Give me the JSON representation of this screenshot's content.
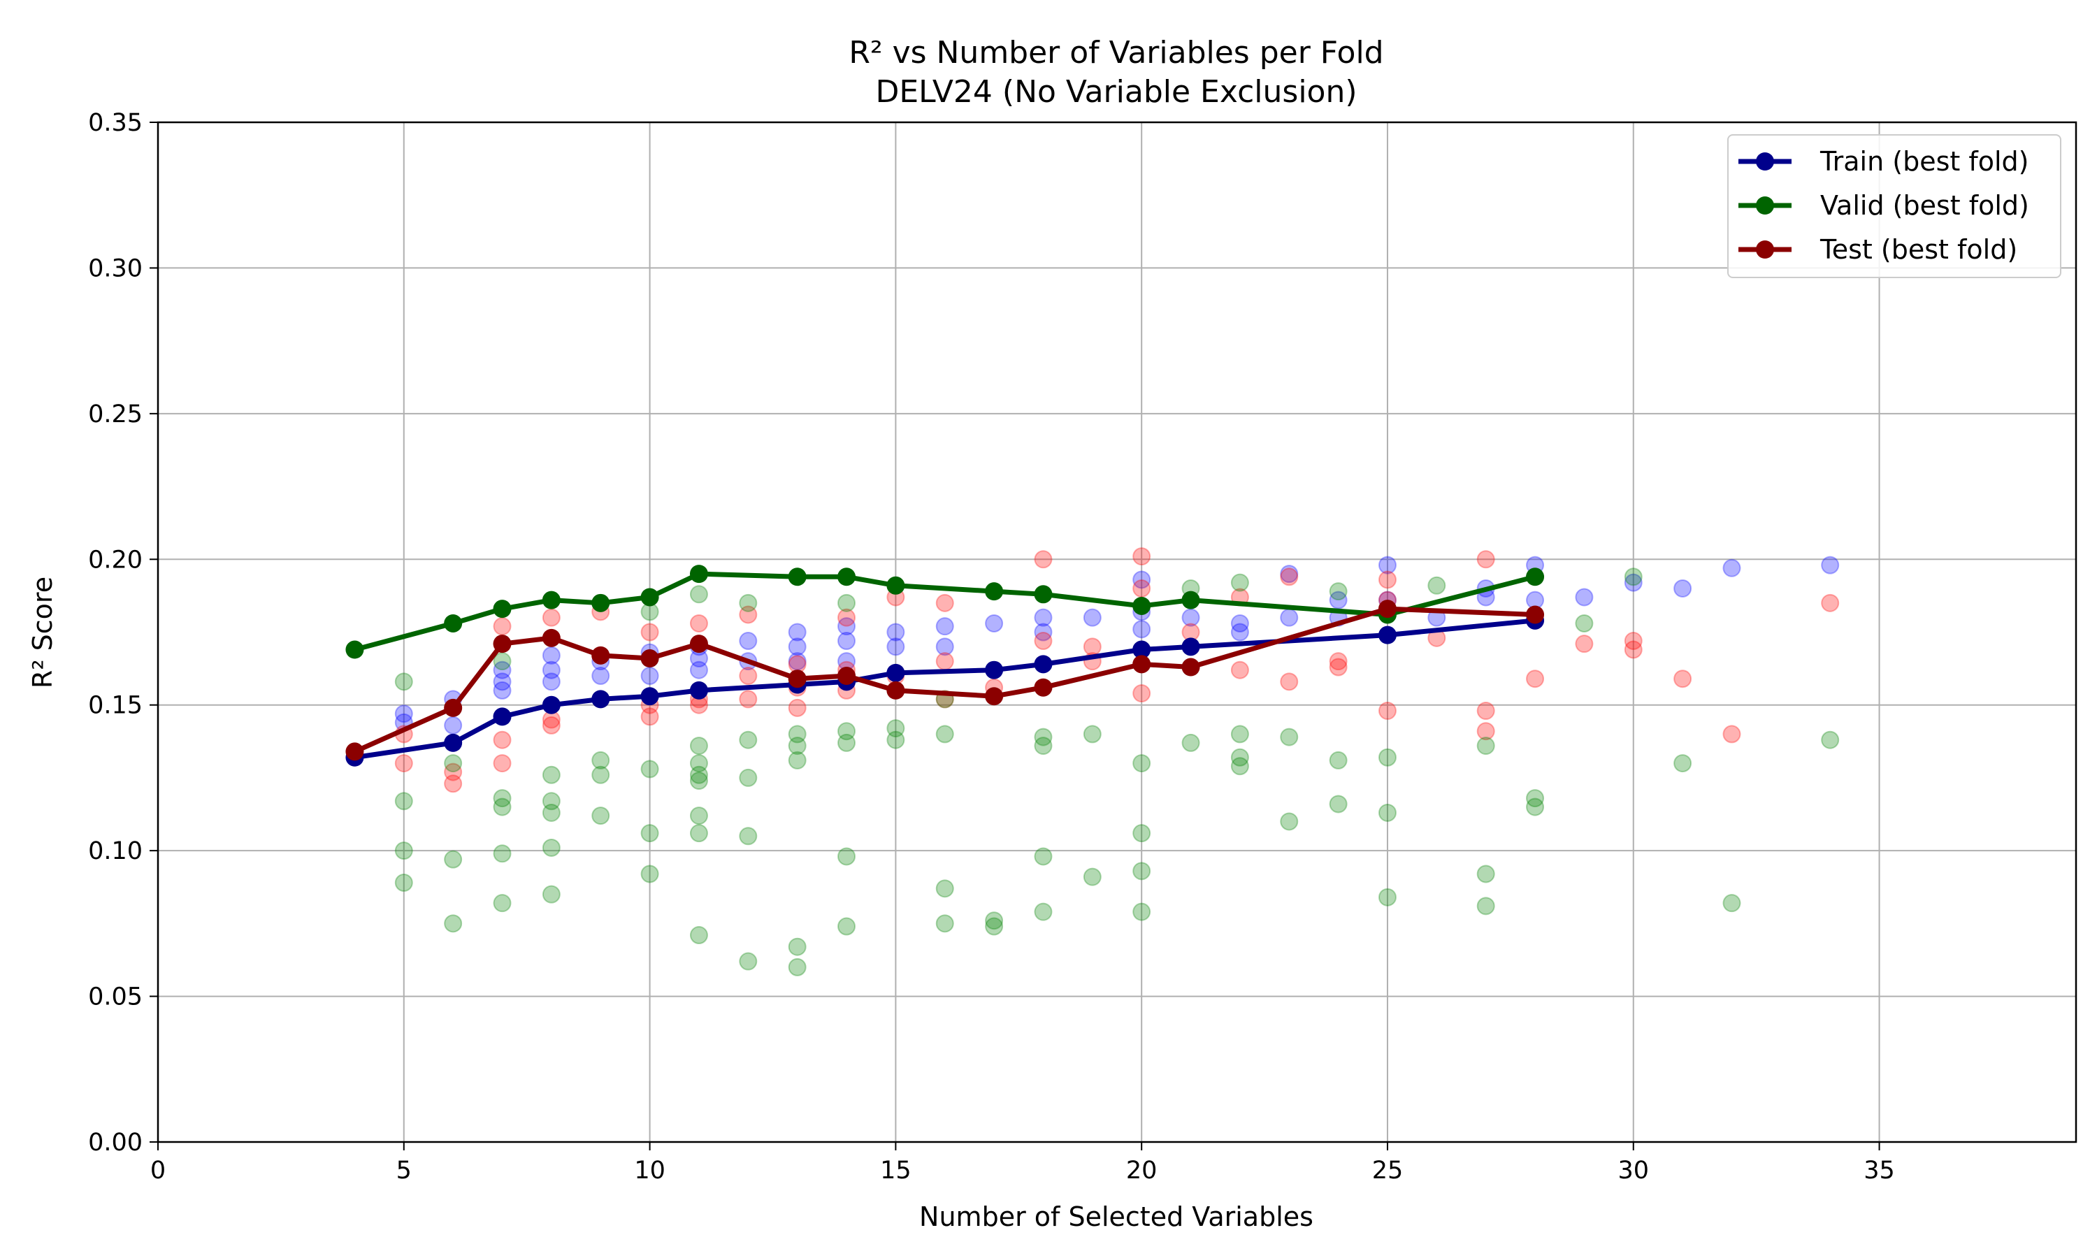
{
  "chart_data": {
    "type": "line",
    "title": "R² vs Number of Variables per Fold",
    "subtitle": "DELV24 (No Variable Exclusion)",
    "xlabel": "Number of Selected Variables",
    "ylabel": "R² Score",
    "xlim": [
      0,
      39
    ],
    "ylim": [
      0,
      0.35
    ],
    "xticks": [
      0,
      5,
      10,
      15,
      20,
      25,
      30,
      35
    ],
    "xtick_labels": [
      "0",
      "5",
      "10",
      "15",
      "20",
      "25",
      "30",
      "35"
    ],
    "yticks": [
      0,
      0.05,
      0.1,
      0.15,
      0.2,
      0.25,
      0.3,
      0.35
    ],
    "ytick_labels": [
      "0.00",
      "0.05",
      "0.10",
      "0.15",
      "0.20",
      "0.25",
      "0.30",
      "0.35"
    ],
    "grid": true,
    "legend_position": "top-right",
    "series": [
      {
        "name": "Train (best fold)",
        "color": "#00008b",
        "x": [
          4,
          6,
          7,
          8,
          9,
          10,
          11,
          13,
          14,
          15,
          17,
          18,
          20,
          21,
          25,
          28
        ],
        "y": [
          0.132,
          0.137,
          0.146,
          0.15,
          0.152,
          0.153,
          0.155,
          0.157,
          0.158,
          0.161,
          0.162,
          0.164,
          0.169,
          0.17,
          0.174,
          0.179
        ]
      },
      {
        "name": "Valid (best fold)",
        "color": "#006400",
        "x": [
          4,
          6,
          7,
          8,
          9,
          10,
          11,
          13,
          14,
          15,
          17,
          18,
          20,
          21,
          25,
          28
        ],
        "y": [
          0.169,
          0.178,
          0.183,
          0.186,
          0.185,
          0.187,
          0.195,
          0.194,
          0.194,
          0.191,
          0.189,
          0.188,
          0.184,
          0.186,
          0.181,
          0.194
        ]
      },
      {
        "name": "Test (best fold)",
        "color": "#8b0000",
        "x": [
          4,
          6,
          7,
          8,
          9,
          10,
          11,
          13,
          14,
          15,
          17,
          18,
          20,
          21,
          25,
          28
        ],
        "y": [
          0.134,
          0.149,
          0.171,
          0.173,
          0.167,
          0.166,
          0.171,
          0.159,
          0.16,
          0.155,
          0.153,
          0.156,
          0.164,
          0.163,
          0.183,
          0.181
        ]
      }
    ],
    "scatter_series": [
      {
        "color": "#0000ff",
        "points": [
          [
            5,
            0.147
          ],
          [
            5,
            0.144
          ],
          [
            6,
            0.152
          ],
          [
            6,
            0.143
          ],
          [
            7,
            0.155
          ],
          [
            7,
            0.158
          ],
          [
            7,
            0.162
          ],
          [
            8,
            0.158
          ],
          [
            8,
            0.162
          ],
          [
            8,
            0.167
          ],
          [
            9,
            0.16
          ],
          [
            9,
            0.165
          ],
          [
            10,
            0.16
          ],
          [
            10,
            0.166
          ],
          [
            10,
            0.168
          ],
          [
            11,
            0.162
          ],
          [
            11,
            0.166
          ],
          [
            11,
            0.17
          ],
          [
            12,
            0.165
          ],
          [
            12,
            0.172
          ],
          [
            13,
            0.165
          ],
          [
            13,
            0.17
          ],
          [
            13,
            0.175
          ],
          [
            14,
            0.165
          ],
          [
            14,
            0.172
          ],
          [
            14,
            0.177
          ],
          [
            15,
            0.17
          ],
          [
            15,
            0.175
          ],
          [
            16,
            0.17
          ],
          [
            16,
            0.177
          ],
          [
            17,
            0.178
          ],
          [
            18,
            0.175
          ],
          [
            18,
            0.18
          ],
          [
            19,
            0.18
          ],
          [
            20,
            0.176
          ],
          [
            20,
            0.182
          ],
          [
            20,
            0.193
          ],
          [
            21,
            0.18
          ],
          [
            22,
            0.178
          ],
          [
            22,
            0.175
          ],
          [
            23,
            0.18
          ],
          [
            23,
            0.195
          ],
          [
            24,
            0.18
          ],
          [
            24,
            0.186
          ],
          [
            25,
            0.198
          ],
          [
            25,
            0.186
          ],
          [
            26,
            0.18
          ],
          [
            27,
            0.187
          ],
          [
            27,
            0.19
          ],
          [
            28,
            0.186
          ],
          [
            28,
            0.198
          ],
          [
            29,
            0.187
          ],
          [
            30,
            0.192
          ],
          [
            31,
            0.19
          ],
          [
            32,
            0.197
          ],
          [
            34,
            0.198
          ]
        ]
      },
      {
        "color": "#ff0000",
        "points": [
          [
            5,
            0.14
          ],
          [
            5,
            0.13
          ],
          [
            6,
            0.127
          ],
          [
            6,
            0.123
          ],
          [
            7,
            0.138
          ],
          [
            7,
            0.13
          ],
          [
            7,
            0.177
          ],
          [
            8,
            0.143
          ],
          [
            8,
            0.145
          ],
          [
            8,
            0.18
          ],
          [
            9,
            0.182
          ],
          [
            9,
            0.167
          ],
          [
            10,
            0.146
          ],
          [
            10,
            0.15
          ],
          [
            10,
            0.175
          ],
          [
            11,
            0.152
          ],
          [
            11,
            0.15
          ],
          [
            11,
            0.178
          ],
          [
            12,
            0.152
          ],
          [
            12,
            0.16
          ],
          [
            12,
            0.181
          ],
          [
            13,
            0.149
          ],
          [
            13,
            0.156
          ],
          [
            13,
            0.164
          ],
          [
            14,
            0.155
          ],
          [
            14,
            0.162
          ],
          [
            14,
            0.18
          ],
          [
            15,
            0.16
          ],
          [
            15,
            0.187
          ],
          [
            16,
            0.152
          ],
          [
            16,
            0.165
          ],
          [
            16,
            0.185
          ],
          [
            17,
            0.156
          ],
          [
            18,
            0.2
          ],
          [
            18,
            0.172
          ],
          [
            19,
            0.165
          ],
          [
            19,
            0.17
          ],
          [
            20,
            0.201
          ],
          [
            20,
            0.19
          ],
          [
            20,
            0.154
          ],
          [
            21,
            0.175
          ],
          [
            22,
            0.162
          ],
          [
            22,
            0.187
          ],
          [
            23,
            0.158
          ],
          [
            23,
            0.194
          ],
          [
            24,
            0.163
          ],
          [
            24,
            0.165
          ],
          [
            25,
            0.148
          ],
          [
            25,
            0.193
          ],
          [
            25,
            0.186
          ],
          [
            26,
            0.173
          ],
          [
            27,
            0.2
          ],
          [
            27,
            0.148
          ],
          [
            27,
            0.141
          ],
          [
            28,
            0.159
          ],
          [
            29,
            0.171
          ],
          [
            30,
            0.169
          ],
          [
            30,
            0.172
          ],
          [
            31,
            0.159
          ],
          [
            32,
            0.14
          ],
          [
            34,
            0.185
          ]
        ]
      },
      {
        "color": "#008000",
        "points": [
          [
            5,
            0.158
          ],
          [
            5,
            0.117
          ],
          [
            5,
            0.1
          ],
          [
            5,
            0.089
          ],
          [
            6,
            0.13
          ],
          [
            6,
            0.097
          ],
          [
            6,
            0.075
          ],
          [
            7,
            0.165
          ],
          [
            7,
            0.118
          ],
          [
            7,
            0.115
          ],
          [
            7,
            0.099
          ],
          [
            7,
            0.082
          ],
          [
            8,
            0.126
          ],
          [
            8,
            0.117
          ],
          [
            8,
            0.113
          ],
          [
            8,
            0.101
          ],
          [
            8,
            0.085
          ],
          [
            9,
            0.131
          ],
          [
            9,
            0.126
          ],
          [
            9,
            0.112
          ],
          [
            10,
            0.182
          ],
          [
            10,
            0.128
          ],
          [
            10,
            0.106
          ],
          [
            10,
            0.092
          ],
          [
            11,
            0.188
          ],
          [
            11,
            0.136
          ],
          [
            11,
            0.13
          ],
          [
            11,
            0.126
          ],
          [
            11,
            0.124
          ],
          [
            11,
            0.112
          ],
          [
            11,
            0.106
          ],
          [
            11,
            0.071
          ],
          [
            12,
            0.185
          ],
          [
            12,
            0.138
          ],
          [
            12,
            0.125
          ],
          [
            12,
            0.105
          ],
          [
            12,
            0.062
          ],
          [
            13,
            0.14
          ],
          [
            13,
            0.136
          ],
          [
            13,
            0.131
          ],
          [
            13,
            0.067
          ],
          [
            13,
            0.06
          ],
          [
            14,
            0.185
          ],
          [
            14,
            0.141
          ],
          [
            14,
            0.137
          ],
          [
            14,
            0.098
          ],
          [
            14,
            0.074
          ],
          [
            15,
            0.142
          ],
          [
            15,
            0.138
          ],
          [
            16,
            0.152
          ],
          [
            16,
            0.14
          ],
          [
            16,
            0.087
          ],
          [
            16,
            0.075
          ],
          [
            17,
            0.076
          ],
          [
            17,
            0.074
          ],
          [
            18,
            0.139
          ],
          [
            18,
            0.136
          ],
          [
            18,
            0.098
          ],
          [
            18,
            0.079
          ],
          [
            19,
            0.14
          ],
          [
            19,
            0.091
          ],
          [
            20,
            0.13
          ],
          [
            20,
            0.106
          ],
          [
            20,
            0.093
          ],
          [
            20,
            0.079
          ],
          [
            21,
            0.19
          ],
          [
            21,
            0.137
          ],
          [
            22,
            0.192
          ],
          [
            22,
            0.14
          ],
          [
            22,
            0.132
          ],
          [
            22,
            0.129
          ],
          [
            23,
            0.139
          ],
          [
            23,
            0.11
          ],
          [
            24,
            0.189
          ],
          [
            24,
            0.131
          ],
          [
            24,
            0.116
          ],
          [
            25,
            0.132
          ],
          [
            25,
            0.113
          ],
          [
            25,
            0.084
          ],
          [
            26,
            0.191
          ],
          [
            27,
            0.136
          ],
          [
            27,
            0.092
          ],
          [
            27,
            0.081
          ],
          [
            28,
            0.118
          ],
          [
            28,
            0.115
          ],
          [
            29,
            0.178
          ],
          [
            30,
            0.194
          ],
          [
            31,
            0.13
          ],
          [
            32,
            0.082
          ],
          [
            34,
            0.138
          ]
        ]
      }
    ]
  }
}
